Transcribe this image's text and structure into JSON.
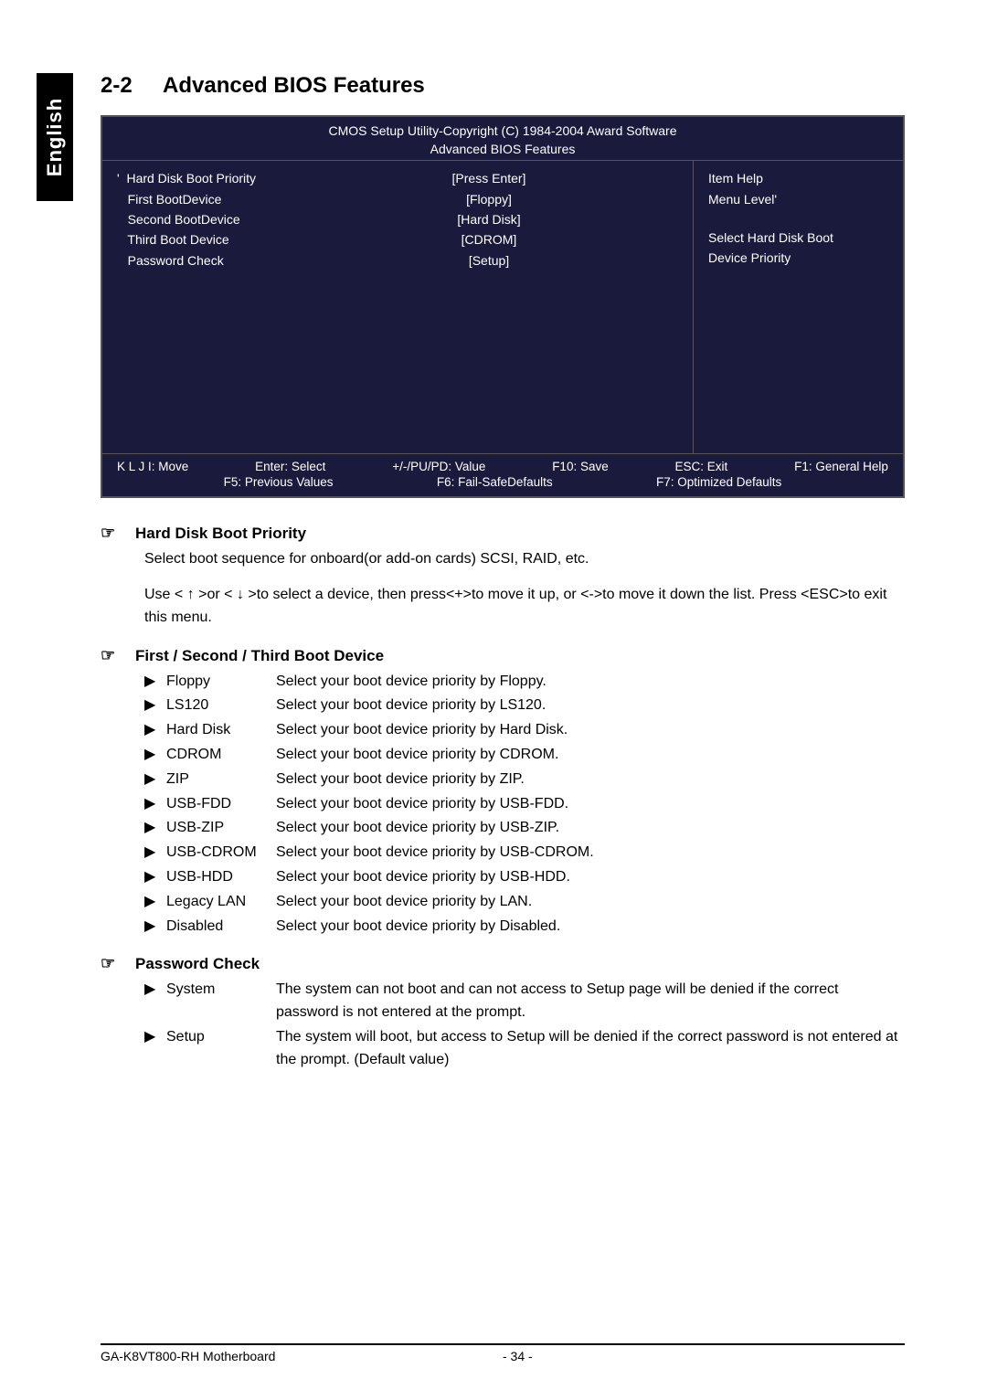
{
  "sideTab": "English",
  "section": {
    "number": "2-2",
    "title": "Advanced BIOS Features"
  },
  "bios": {
    "header": {
      "line1": "CMOS Setup Utility-Copyright (C) 1984-2004 Award Software",
      "line2": "Advanced BIOS Features"
    },
    "items": [
      {
        "label": "'  Hard Disk Boot Priority",
        "value": "[Press Enter]"
      },
      {
        "label": "   First BootDevice",
        "value": "[Floppy]"
      },
      {
        "label": "   Second BootDevice",
        "value": "[Hard Disk]"
      },
      {
        "label": "   Third Boot Device",
        "value": "[CDROM]"
      },
      {
        "label": "   Password Check",
        "value": "[Setup]"
      }
    ],
    "help": {
      "title": "Item Help",
      "level": "Menu Level'",
      "desc1": "Select Hard Disk Boot",
      "desc2": "Device Priority"
    },
    "footer": {
      "l1a": "K L J I: Move",
      "l1b": "Enter: Select",
      "l1c": "+/-/PU/PD: Value",
      "l1d": "F10: Save",
      "l1e": "ESC: Exit",
      "l1f": "F1: General Help",
      "l2a": "F5: Previous Values",
      "l2b": "F6: Fail-SafeDefaults",
      "l2c": "F7: Optimized Defaults"
    }
  },
  "hardDisk": {
    "title": "Hard Disk Boot Priority",
    "p1": "Select boot sequence for onboard(or add-on cards) SCSI, RAID, etc.",
    "p2": "Use < ↑ >or <  ↓ >to select a device, then press<+>to move it up, or <->to move it down the list. Press <ESC>to exit this menu."
  },
  "bootDevice": {
    "title": "First / Second / Third Boot Device",
    "options": [
      {
        "name": "Floppy",
        "desc": "Select your boot device priority by Floppy."
      },
      {
        "name": "LS120",
        "desc": "Select your boot device priority by LS120."
      },
      {
        "name": "Hard Disk",
        "desc": "Select your boot device priority by Hard Disk."
      },
      {
        "name": "CDROM",
        "desc": "Select your boot device priority by CDROM."
      },
      {
        "name": "ZIP",
        "desc": "Select your boot device priority by ZIP."
      },
      {
        "name": "USB-FDD",
        "desc": "Select your boot device priority by USB-FDD."
      },
      {
        "name": "USB-ZIP",
        "desc": "Select your boot device priority by USB-ZIP."
      },
      {
        "name": "USB-CDROM",
        "desc": "Select your boot device priority by USB-CDROM."
      },
      {
        "name": "USB-HDD",
        "desc": "Select your boot device priority by USB-HDD."
      },
      {
        "name": "Legacy LAN",
        "desc": "Select your boot device priority by LAN."
      },
      {
        "name": "Disabled",
        "desc": "Select your boot device priority by Disabled."
      }
    ]
  },
  "passwordCheck": {
    "title": "Password Check",
    "options": [
      {
        "name": "System",
        "desc": "The system can not boot and can not access to Setup page will be denied if the correct password is not entered at the prompt."
      },
      {
        "name": "Setup",
        "desc": "The system will boot, but access to Setup will be denied if the correct password is not entered at the prompt. (Default value)"
      }
    ]
  },
  "footer": {
    "left": "GA-K8VT800-RH Motherboard",
    "center": "- 34 -"
  }
}
